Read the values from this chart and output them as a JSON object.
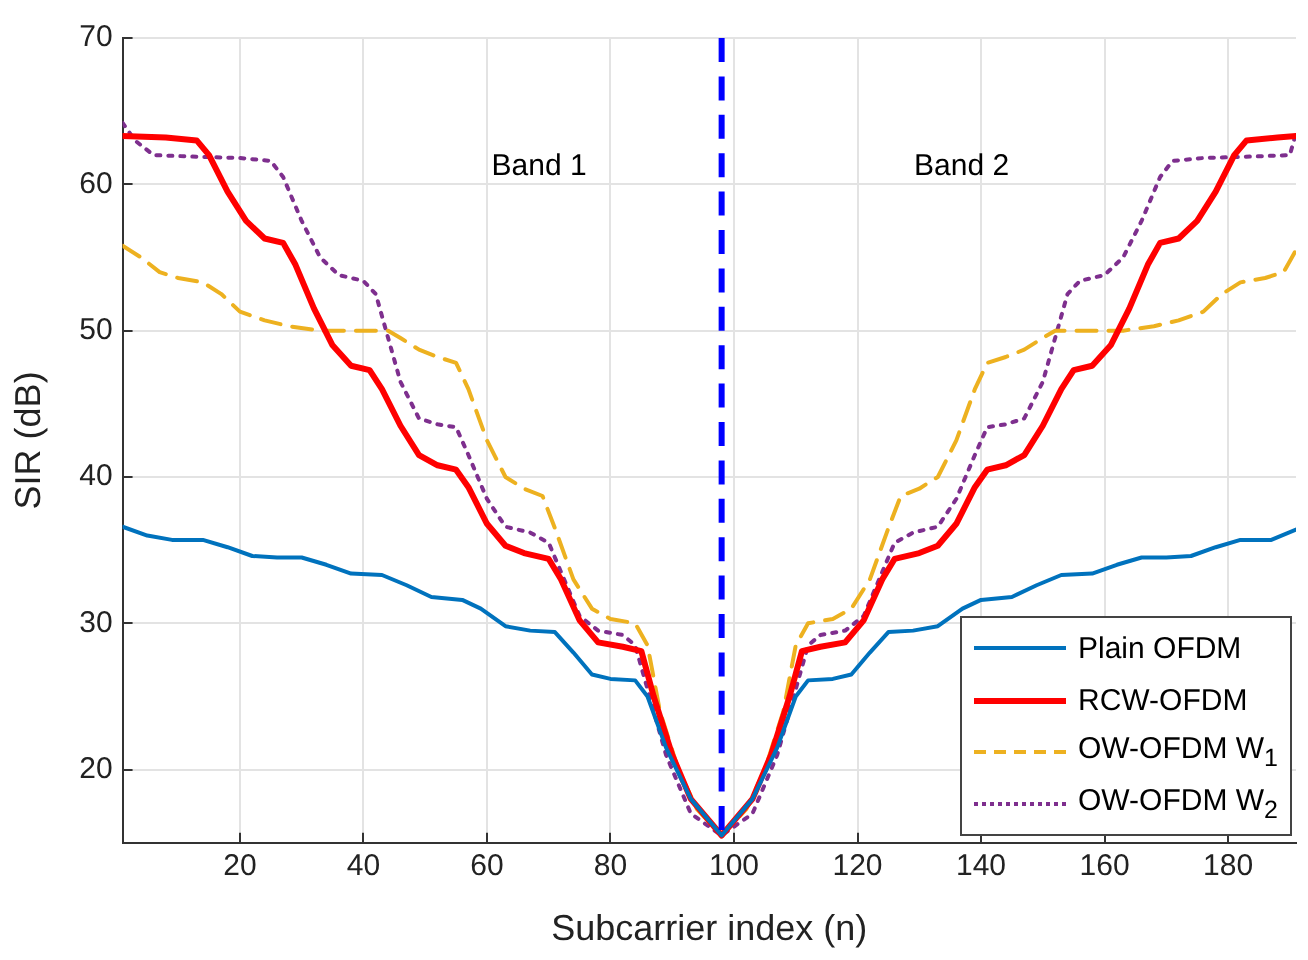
{
  "chart_data": {
    "type": "line",
    "xlabel": "Subcarrier index (n)",
    "ylabel": "SIR (dB)",
    "xlim": [
      1,
      191
    ],
    "ylim": [
      15,
      70
    ],
    "xticks": [
      20,
      40,
      60,
      80,
      100,
      120,
      140,
      160,
      180
    ],
    "yticks": [
      20,
      30,
      40,
      50,
      60,
      70
    ],
    "grid": true,
    "legend": "bottom right",
    "marker": "none",
    "ref_lines": [
      {
        "axis": "x",
        "value": 98,
        "color": "#0000ff",
        "line_style": "dashed"
      }
    ],
    "annotations": [
      "Band 1",
      "Band 2"
    ],
    "series": [
      {
        "name": "Plain OFDM",
        "color": "#0072bd",
        "line_style": "solid",
        "x": [
          1,
          5,
          9,
          14,
          18,
          22,
          26,
          30,
          34,
          38,
          43,
          47,
          51,
          56,
          59,
          63,
          67,
          71,
          74,
          77,
          80,
          84,
          86,
          89,
          93,
          98,
          103,
          107,
          110,
          112,
          116,
          119,
          122,
          125,
          129,
          133,
          137,
          140,
          145,
          149,
          153,
          158,
          162,
          166,
          170,
          174,
          178,
          182,
          187,
          191
        ],
        "values": [
          36.6,
          36,
          35.7,
          35.7,
          35.2,
          34.6,
          34.5,
          34.5,
          34,
          33.4,
          33.3,
          32.6,
          31.8,
          31.6,
          31,
          29.8,
          29.5,
          29.4,
          28,
          26.5,
          26.2,
          26.1,
          25,
          21.5,
          18,
          15.5,
          18,
          21.5,
          25,
          26.1,
          26.2,
          26.5,
          28,
          29.4,
          29.5,
          29.8,
          31,
          31.6,
          31.8,
          32.6,
          33.3,
          33.4,
          34,
          34.5,
          34.5,
          34.6,
          35.2,
          35.7,
          35.7,
          36.4
        ]
      },
      {
        "name": "RCW-OFDM",
        "color": "#ff0000",
        "line_style": "solid",
        "x": [
          1,
          8,
          13,
          15,
          18,
          21,
          24,
          27,
          29,
          32,
          35,
          38,
          41,
          43,
          46,
          49,
          52,
          55,
          57,
          60,
          63,
          66,
          70,
          72,
          75,
          78,
          82,
          85,
          87,
          90,
          93,
          98,
          103,
          106,
          109,
          111,
          114,
          118,
          121,
          124,
          126,
          130,
          133,
          136,
          139,
          141,
          144,
          147,
          150,
          153,
          155,
          158,
          161,
          164,
          167,
          169,
          172,
          175,
          178,
          181,
          183,
          188,
          191
        ],
        "values": [
          63.3,
          63.2,
          63,
          62,
          59.5,
          57.5,
          56.3,
          56,
          54.5,
          51.5,
          49,
          47.6,
          47.3,
          46,
          43.5,
          41.5,
          40.8,
          40.5,
          39.3,
          36.8,
          35.3,
          34.8,
          34.4,
          33,
          30.2,
          28.7,
          28.4,
          28.1,
          25,
          21,
          18,
          15.5,
          18,
          21,
          25,
          28.1,
          28.4,
          28.7,
          30.2,
          33,
          34.4,
          34.8,
          35.3,
          36.8,
          39.3,
          40.5,
          40.8,
          41.5,
          43.5,
          46,
          47.3,
          47.6,
          49,
          51.5,
          54.5,
          56,
          56.3,
          57.5,
          59.5,
          62,
          63,
          63.2,
          63.3
        ]
      },
      {
        "name": "OW-OFDM W$_{1}$",
        "color": "#edb120",
        "line_style": "dashed",
        "x": [
          1,
          4,
          7,
          10,
          14,
          17,
          20,
          24,
          28,
          33,
          44,
          46,
          49,
          52,
          55,
          57,
          60,
          63,
          66,
          69,
          71,
          74,
          77,
          80,
          84,
          86,
          88,
          91,
          94,
          98,
          102,
          105,
          108,
          110,
          112,
          116,
          119,
          122,
          125,
          127,
          130,
          133,
          136,
          139,
          141,
          144,
          147,
          150,
          152,
          163,
          168,
          172,
          176,
          179,
          182,
          186,
          189,
          191
        ],
        "values": [
          55.8,
          55,
          54,
          53.6,
          53.3,
          52.5,
          51.3,
          50.7,
          50.3,
          50,
          50,
          49.5,
          48.7,
          48.2,
          47.8,
          46,
          42.5,
          40,
          39.2,
          38.7,
          36.5,
          33,
          31,
          30.3,
          30,
          28.5,
          24,
          20,
          17.3,
          15.5,
          17.3,
          20,
          24,
          28.5,
          30,
          30.3,
          31,
          33,
          36.5,
          38.7,
          39.2,
          40,
          42.5,
          46,
          47.8,
          48.2,
          48.7,
          49.5,
          50,
          50,
          50.3,
          50.7,
          51.3,
          52.5,
          53.3,
          53.6,
          54,
          55.5
        ]
      },
      {
        "name": "OW-OFDM W$_{2}$",
        "color": "#7e2f8e",
        "line_style": "dotted",
        "x": [
          1,
          3,
          6,
          12,
          20,
          25,
          27,
          30,
          33,
          36,
          40,
          42,
          44,
          46,
          49,
          52,
          55,
          57,
          60,
          63,
          67,
          70,
          72,
          75,
          78,
          82,
          84,
          86,
          89,
          93,
          98,
          103,
          107,
          110,
          112,
          114,
          118,
          121,
          124,
          126,
          129,
          133,
          136,
          139,
          141,
          144,
          147,
          150,
          152,
          154,
          156,
          160,
          163,
          166,
          169,
          171,
          176,
          184,
          190,
          191
        ],
        "values": [
          64.2,
          63,
          62,
          61.9,
          61.8,
          61.6,
          60.5,
          57.5,
          55,
          53.8,
          53.4,
          52.5,
          49.5,
          46.5,
          44,
          43.6,
          43.4,
          41.5,
          38.5,
          36.6,
          36.2,
          35.5,
          33.5,
          30.5,
          29.5,
          29.2,
          28.5,
          25.5,
          21,
          17,
          15.5,
          17,
          21,
          25.5,
          28.5,
          29.2,
          29.5,
          30.5,
          33.5,
          35.5,
          36.2,
          36.6,
          38.5,
          41.5,
          43.4,
          43.6,
          44,
          46.5,
          49.5,
          52.5,
          53.4,
          53.8,
          55,
          57.5,
          60.5,
          61.6,
          61.8,
          61.9,
          62,
          63.5
        ]
      }
    ]
  }
}
